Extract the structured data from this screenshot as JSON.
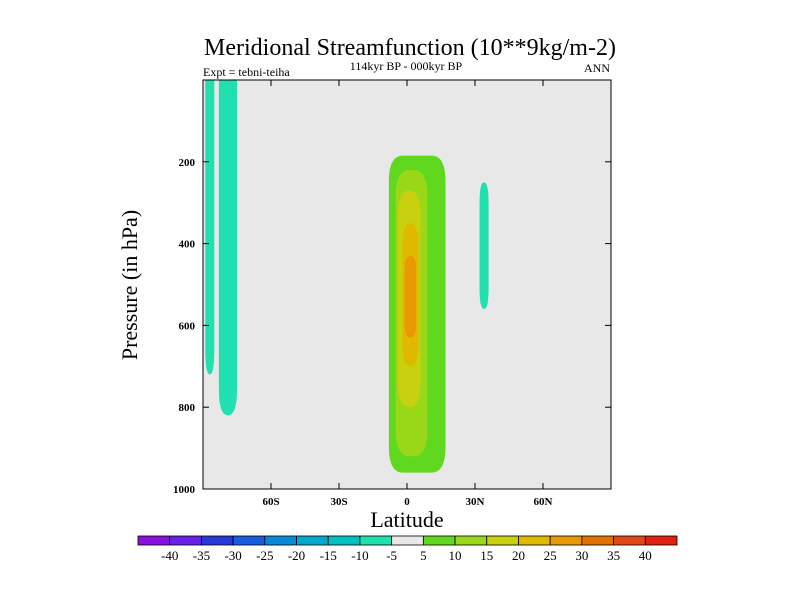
{
  "chart_data": {
    "type": "heatmap",
    "subtype": "filled-contour",
    "title": "Meridional Streamfunction (10**9kg/m-2)",
    "subtitle": "114kyr BP - 000kyr BP",
    "left_label": "Expt = tebni-teiha",
    "right_label": "ANN",
    "xlabel": "Latitude",
    "ylabel": "Pressure (in hPa)",
    "xlim": [
      -90,
      90
    ],
    "ylim": [
      1000,
      0
    ],
    "y_reversed": true,
    "xticks": [
      {
        "value": -60,
        "label": "60S"
      },
      {
        "value": -30,
        "label": "30S"
      },
      {
        "value": 0,
        "label": "0"
      },
      {
        "value": 30,
        "label": "30N"
      },
      {
        "value": 60,
        "label": "60N"
      }
    ],
    "yticks": [
      {
        "value": 200,
        "label": "200"
      },
      {
        "value": 400,
        "label": "400"
      },
      {
        "value": 600,
        "label": "600"
      },
      {
        "value": 800,
        "label": "800"
      },
      {
        "value": 1000,
        "label": "1000"
      }
    ],
    "background_band": "-5 to 5",
    "regions": [
      {
        "name": "sh-polar-cell-a",
        "level": -10,
        "lat_range": [
          -89,
          -85
        ],
        "p_range": [
          0,
          720
        ]
      },
      {
        "name": "sh-polar-cell-b",
        "level": -10,
        "lat_range": [
          -83,
          -75
        ],
        "p_range": [
          0,
          820
        ]
      },
      {
        "name": "nh-small-cell",
        "level": -10,
        "lat_range": [
          32,
          36
        ],
        "p_range": [
          250,
          560
        ]
      },
      {
        "name": "tropical-cell-outer",
        "level": 5,
        "lat_range": [
          -8,
          17
        ],
        "p_range": [
          185,
          960
        ]
      },
      {
        "name": "tropical-cell-10",
        "level": 10,
        "lat_range": [
          -5,
          9
        ],
        "p_range": [
          220,
          920
        ]
      },
      {
        "name": "tropical-cell-15",
        "level": 15,
        "lat_range": [
          -4,
          6
        ],
        "p_range": [
          270,
          800
        ]
      },
      {
        "name": "tropical-cell-20",
        "level": 20,
        "lat_range": [
          -2,
          5
        ],
        "p_range": [
          350,
          700
        ]
      },
      {
        "name": "tropical-cell-core",
        "level": 25,
        "lat_range": [
          -1,
          4
        ],
        "p_range": [
          430,
          630
        ]
      }
    ],
    "colorbar": {
      "labels": [
        "-40",
        "-35",
        "-30",
        "-25",
        "-20",
        "-15",
        "-10",
        "-5",
        "5",
        "10",
        "15",
        "20",
        "25",
        "30",
        "35",
        "40"
      ],
      "colors": [
        "#8a10e0",
        "#6a20e8",
        "#2838d8",
        "#1a5ce0",
        "#0a88d8",
        "#00a8d0",
        "#00c0c0",
        "#20e0b0",
        "#e8e8e8",
        "#60d820",
        "#98d818",
        "#c8d010",
        "#e0b800",
        "#e89800",
        "#e07000",
        "#e04818",
        "#e02010"
      ]
    },
    "level_colors": {
      "-10": "#20e0b0",
      "5": "#60d820",
      "10": "#98d818",
      "15": "#c8d010",
      "20": "#e0b800",
      "25": "#e89800"
    },
    "plot_background": "#e8e8e8"
  }
}
